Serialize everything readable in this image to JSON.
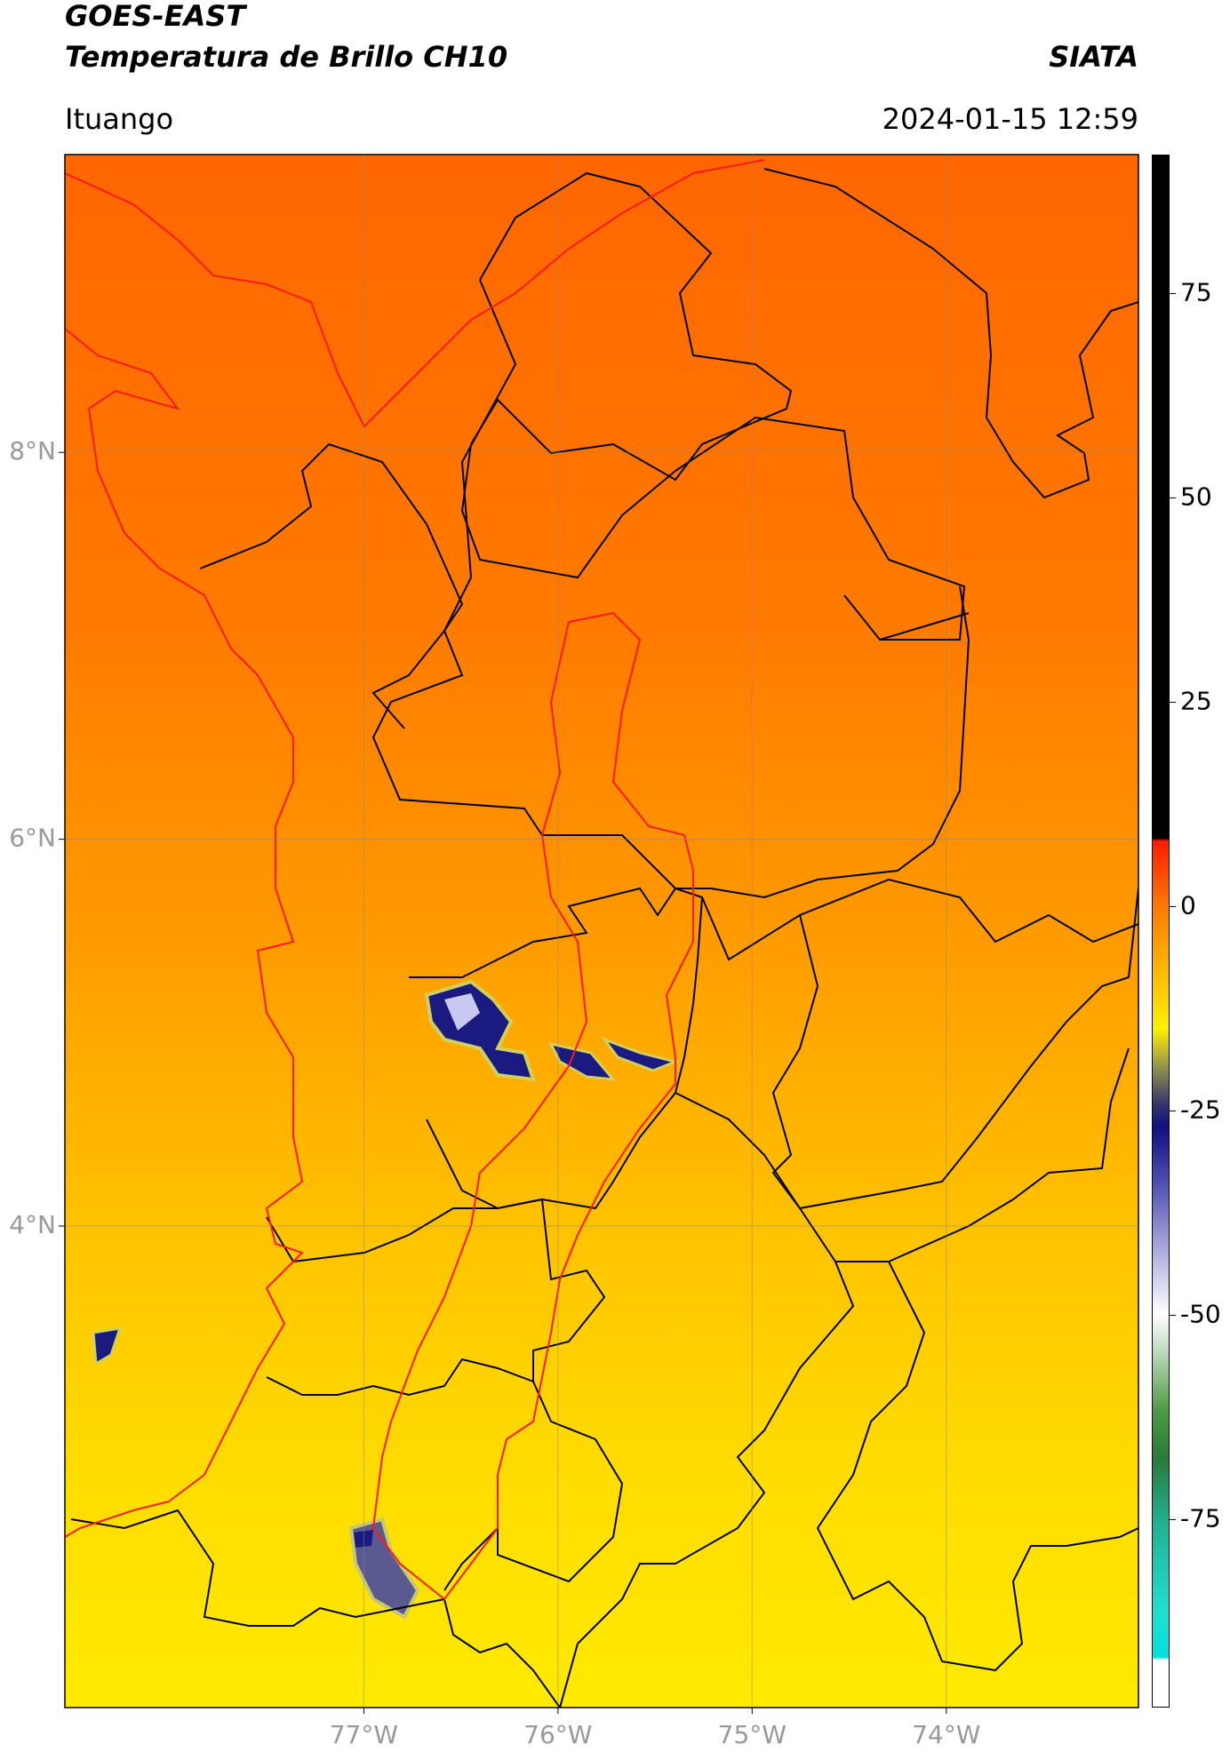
{
  "header": {
    "title": "GOES-EAST",
    "subtitle": "Temperatura de Brillo CH10",
    "brand": "SIATA",
    "location": "Ituango",
    "datetime": "2024-01-15 12:59"
  },
  "map": {
    "xlim": [
      -78.54,
      -73.01
    ],
    "ylim": [
      1.51,
      9.54
    ],
    "xticks": [
      {
        "value": -77,
        "label": "77°W"
      },
      {
        "value": -76,
        "label": "76°W"
      },
      {
        "value": -75,
        "label": "75°W"
      },
      {
        "value": -74,
        "label": "74°W"
      }
    ],
    "yticks": [
      {
        "value": 8,
        "label": "8°N"
      },
      {
        "value": 6,
        "label": "6°N"
      },
      {
        "value": 4,
        "label": "4°N"
      }
    ],
    "grid": true
  },
  "colorbar": {
    "ylim": [
      -98,
      92
    ],
    "yticks": [
      75,
      50,
      25,
      0,
      -25,
      -50,
      -75
    ]
  }
}
